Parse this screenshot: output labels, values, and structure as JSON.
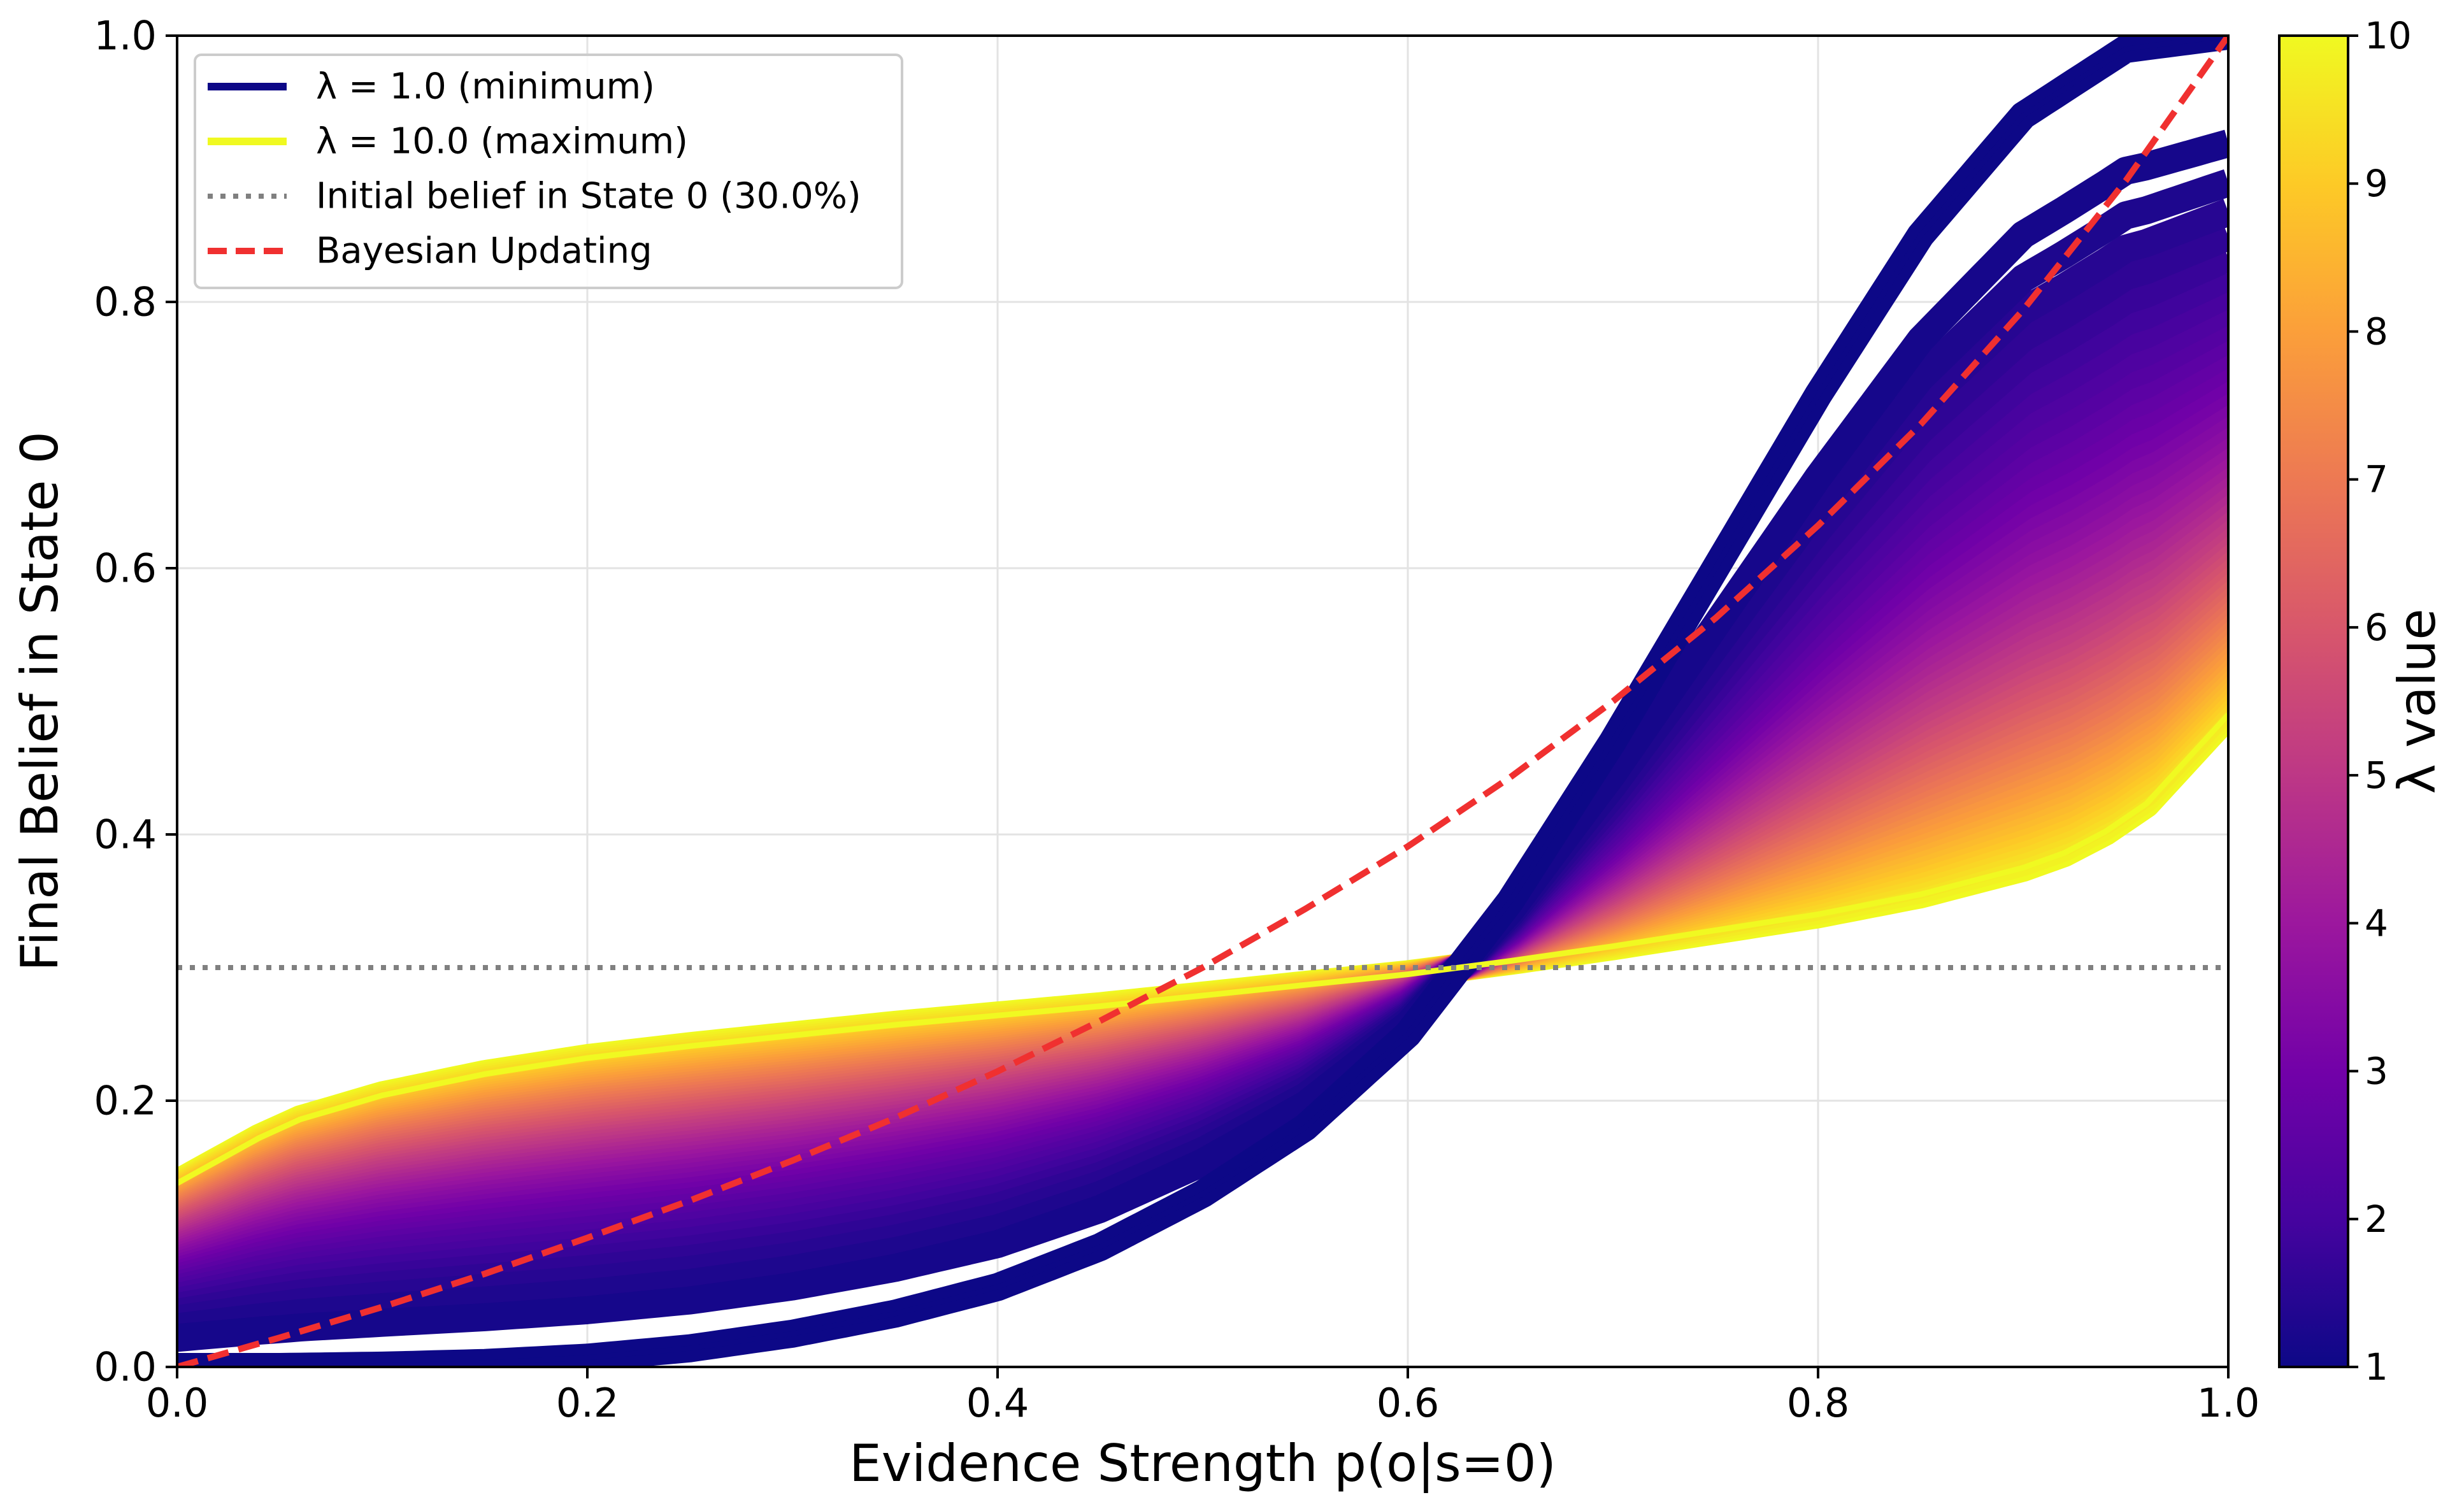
{
  "chart_data": {
    "type": "line",
    "xlabel": "Evidence Strength p(o|s=0)",
    "ylabel": "Final Belief in State 0",
    "xlim": [
      0.0,
      1.0
    ],
    "ylim": [
      0.0,
      1.0
    ],
    "xticks": [
      "0.0",
      "0.2",
      "0.4",
      "0.6",
      "0.8",
      "1.0"
    ],
    "yticks": [
      "0.0",
      "0.2",
      "0.4",
      "0.6",
      "0.8",
      "1.0"
    ],
    "grid": true,
    "legend_position": "top-left",
    "legend": [
      {
        "label": "λ = 1.0 (minimum)",
        "color": "#0d0887",
        "style": "solid"
      },
      {
        "label": "λ = 10.0 (maximum)",
        "color": "#f0f921",
        "style": "solid"
      },
      {
        "label": "Initial belief in State 0 (30.0%)",
        "color": "#808080",
        "style": "dotted"
      },
      {
        "label": "Bayesian Updating",
        "color": "#f03030",
        "style": "dashed"
      }
    ],
    "colorbar": {
      "label": "λ value",
      "range": [
        1,
        10
      ],
      "ticks": [
        "1",
        "2",
        "3",
        "4",
        "5",
        "6",
        "7",
        "8",
        "9",
        "10"
      ],
      "colormap": "plasma"
    },
    "initial_belief": 0.3,
    "lambda_min": 1,
    "lambda_max": 10,
    "lambda_steps": 60,
    "series": [
      {
        "name": "λ = 1.0 (minimum)",
        "x": [
          0.0,
          0.05,
          0.1,
          0.15,
          0.2,
          0.25,
          0.3,
          0.35,
          0.4,
          0.45,
          0.5,
          0.55,
          0.6,
          0.625,
          0.65,
          0.7,
          0.75,
          0.8,
          0.85,
          0.9,
          0.95,
          1.0
        ],
        "y": [
          0.0,
          0.0,
          0.001,
          0.003,
          0.007,
          0.014,
          0.025,
          0.04,
          0.06,
          0.09,
          0.13,
          0.18,
          0.25,
          0.3,
          0.35,
          0.47,
          0.6,
          0.73,
          0.85,
          0.94,
          0.99,
          1.0
        ]
      },
      {
        "name": "λ = 10.0 (maximum)",
        "x": [
          0.0,
          0.04,
          0.06,
          0.1,
          0.15,
          0.2,
          0.25,
          0.3,
          0.35,
          0.4,
          0.45,
          0.5,
          0.55,
          0.6,
          0.625,
          0.65,
          0.7,
          0.75,
          0.8,
          0.85,
          0.9,
          0.92,
          0.94,
          0.96,
          1.0
        ],
        "y": [
          0.138,
          0.172,
          0.186,
          0.204,
          0.22,
          0.232,
          0.241,
          0.249,
          0.257,
          0.264,
          0.271,
          0.279,
          0.287,
          0.295,
          0.3,
          0.305,
          0.316,
          0.328,
          0.34,
          0.355,
          0.375,
          0.386,
          0.402,
          0.423,
          0.49
        ]
      },
      {
        "name": "Bayesian Updating",
        "x": [
          0.0,
          0.05,
          0.1,
          0.15,
          0.2,
          0.25,
          0.3,
          0.35,
          0.4,
          0.45,
          0.5,
          0.55,
          0.6,
          0.65,
          0.7,
          0.75,
          0.8,
          0.85,
          0.9,
          0.95,
          1.0
        ],
        "y": [
          0.0,
          0.022,
          0.045,
          0.07,
          0.097,
          0.125,
          0.155,
          0.187,
          0.222,
          0.26,
          0.3,
          0.344,
          0.391,
          0.443,
          0.5,
          0.5625,
          0.632,
          0.708,
          0.794,
          0.891,
          1.0
        ]
      },
      {
        "name": "Initial belief in State 0 (30.0%)",
        "x": [
          0.0,
          1.0
        ],
        "y": [
          0.3,
          0.3
        ]
      }
    ]
  }
}
